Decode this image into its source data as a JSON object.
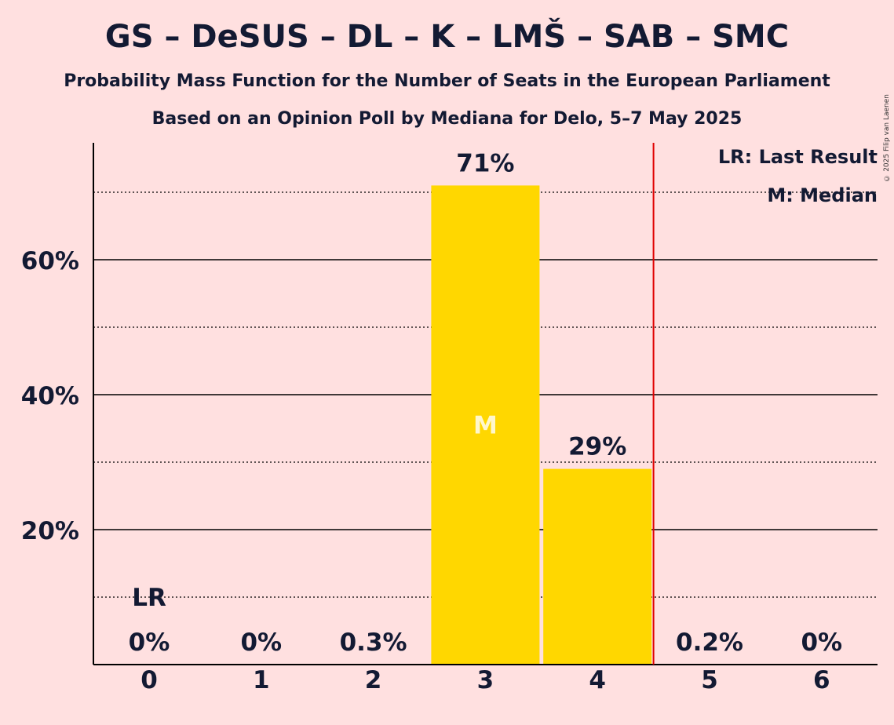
{
  "title": "GS – DeSUS – DL – K – LMŠ – SAB – SMC",
  "subtitle_line1": "Probability Mass Function for the Number of Seats in the European Parliament",
  "subtitle_line2": "Based on an Opinion Poll by Mediana for Delo, 5–7 May 2025",
  "copyright": "© 2025 Filip van Laenen",
  "legend": {
    "last_result": "LR: Last Result",
    "median": "M: Median"
  },
  "colors": {
    "background": "#ffe0e0",
    "bar": "#ffd700",
    "last_result_line": "#e00000",
    "text": "#131a33"
  },
  "chart_data": {
    "type": "bar",
    "categories": [
      "0",
      "1",
      "2",
      "3",
      "4",
      "5",
      "6"
    ],
    "values": [
      0,
      0,
      0.3,
      71,
      29,
      0.2,
      0
    ],
    "data_labels": [
      "0%",
      "0%",
      "0.3%",
      "71%",
      "29%",
      "0.2%",
      "0%"
    ],
    "y_ticks": [
      {
        "value": 20,
        "label": "20%"
      },
      {
        "value": 40,
        "label": "40%"
      },
      {
        "value": 60,
        "label": "60%"
      }
    ],
    "minor_gridlines": [
      10,
      30,
      50,
      70
    ],
    "ylim": [
      0,
      77
    ],
    "last_result": {
      "category_index": 0,
      "label": "LR",
      "marker_line_after_index": 4
    },
    "median": {
      "category_index": 3,
      "label": "M"
    },
    "legend_placement": "top-right"
  }
}
